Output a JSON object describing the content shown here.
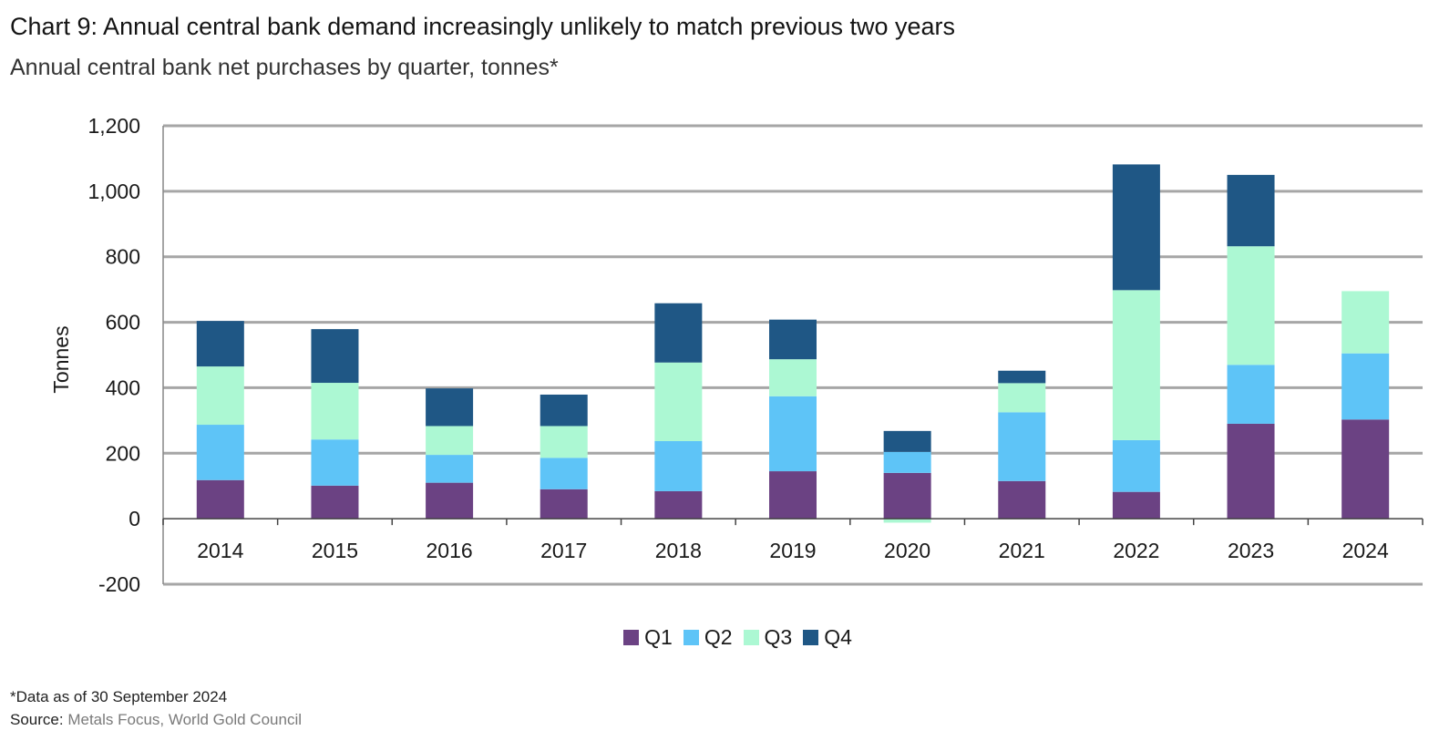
{
  "title": "Chart 9: Annual central bank demand increasingly unlikely to match previous two years",
  "subtitle": "Annual central bank net purchases by quarter, tonnes*",
  "footnote": "*Data as of 30 September 2024",
  "source": {
    "label": "Source:",
    "value": "Metals Focus, World Gold Council"
  },
  "colors": {
    "Q1": "#6b4283",
    "Q2": "#5ec4f7",
    "Q3": "#acf8d3",
    "Q4": "#1f5785",
    "grid": "#a6a6a6",
    "axis": "#888888"
  },
  "chart_data": {
    "type": "bar",
    "stacked": true,
    "title": "Chart 9: Annual central bank demand increasingly unlikely to match previous two years",
    "subtitle": "Annual central bank net purchases by quarter, tonnes*",
    "xlabel": "",
    "ylabel": "Tonnes",
    "ylim": [
      -200,
      1200
    ],
    "yticks": [
      -200,
      0,
      200,
      400,
      600,
      800,
      1000,
      1200
    ],
    "ytick_labels": [
      "-200",
      "0",
      "200",
      "400",
      "600",
      "800",
      "1,000",
      "1,200"
    ],
    "grid": true,
    "legend_position": "bottom-center",
    "categories": [
      "2014",
      "2015",
      "2016",
      "2017",
      "2018",
      "2019",
      "2020",
      "2021",
      "2022",
      "2023",
      "2024"
    ],
    "series": [
      {
        "name": "Q1",
        "values": [
          118,
          101,
          110,
          90,
          84,
          145,
          140,
          115,
          82,
          290,
          303
        ]
      },
      {
        "name": "Q2",
        "values": [
          169,
          141,
          85,
          96,
          153,
          229,
          64,
          210,
          158,
          180,
          202
        ]
      },
      {
        "name": "Q3",
        "values": [
          178,
          173,
          88,
          97,
          240,
          113,
          -12,
          89,
          458,
          362,
          190
        ]
      },
      {
        "name": "Q4",
        "values": [
          139,
          164,
          115,
          96,
          181,
          121,
          64,
          38,
          384,
          218,
          0
        ]
      }
    ]
  }
}
